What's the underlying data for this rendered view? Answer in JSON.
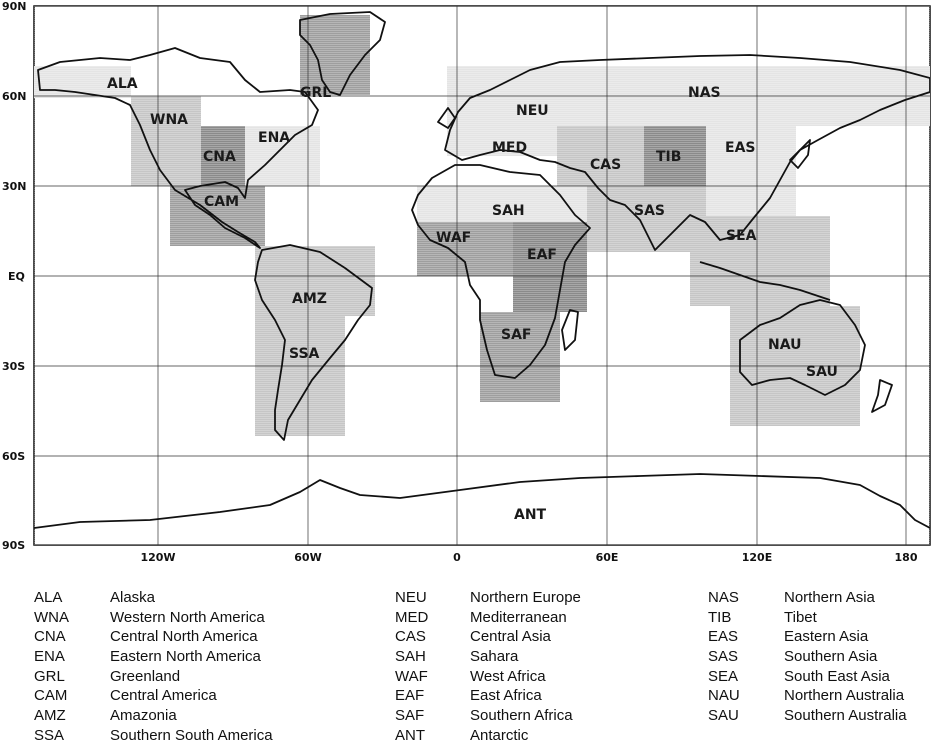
{
  "map": {
    "lat_labels": [
      "90N",
      "60N",
      "30N",
      "EQ",
      "30S",
      "60S",
      "90S"
    ],
    "lon_labels": [
      "120W",
      "60W",
      "0",
      "60E",
      "120E",
      "180"
    ],
    "colors": {
      "light": "#e4e4e4",
      "medium": "#c6c6c6",
      "dark": "#9e9e9e",
      "darker": "#8a8a8a",
      "outline": "#111111"
    },
    "regions": [
      {
        "code": "ALA",
        "shade": "light"
      },
      {
        "code": "WNA",
        "shade": "medium"
      },
      {
        "code": "CNA",
        "shade": "darker"
      },
      {
        "code": "ENA",
        "shade": "light"
      },
      {
        "code": "GRL",
        "shade": "dark"
      },
      {
        "code": "CAM",
        "shade": "dark"
      },
      {
        "code": "AMZ",
        "shade": "medium"
      },
      {
        "code": "SSA",
        "shade": "medium"
      },
      {
        "code": "NEU",
        "shade": "light"
      },
      {
        "code": "MED",
        "shade": "light"
      },
      {
        "code": "CAS",
        "shade": "medium"
      },
      {
        "code": "SAH",
        "shade": "light"
      },
      {
        "code": "WAF",
        "shade": "dark"
      },
      {
        "code": "EAF",
        "shade": "darker"
      },
      {
        "code": "SAF",
        "shade": "dark"
      },
      {
        "code": "ANT",
        "shade": "none"
      },
      {
        "code": "NAS",
        "shade": "light"
      },
      {
        "code": "TIB",
        "shade": "darker"
      },
      {
        "code": "EAS",
        "shade": "light"
      },
      {
        "code": "SAS",
        "shade": "medium"
      },
      {
        "code": "SEA",
        "shade": "medium"
      },
      {
        "code": "NAU",
        "shade": "medium"
      },
      {
        "code": "SAU",
        "shade": "medium"
      }
    ]
  },
  "legend": {
    "columns": [
      [
        {
          "code": "ALA",
          "name": "Alaska"
        },
        {
          "code": "WNA",
          "name": "Western North America"
        },
        {
          "code": "CNA",
          "name": "Central North America"
        },
        {
          "code": "ENA",
          "name": "Eastern North America"
        },
        {
          "code": "GRL",
          "name": "Greenland"
        },
        {
          "code": "CAM",
          "name": "Central America"
        },
        {
          "code": "AMZ",
          "name": "Amazonia"
        },
        {
          "code": "SSA",
          "name": "Southern South America"
        }
      ],
      [
        {
          "code": "NEU",
          "name": "Northern Europe"
        },
        {
          "code": "MED",
          "name": "Mediterranean"
        },
        {
          "code": "CAS",
          "name": "Central Asia"
        },
        {
          "code": "SAH",
          "name": "Sahara"
        },
        {
          "code": "WAF",
          "name": "West Africa"
        },
        {
          "code": "EAF",
          "name": "East Africa"
        },
        {
          "code": "SAF",
          "name": "Southern Africa"
        },
        {
          "code": "ANT",
          "name": "Antarctic"
        }
      ],
      [
        {
          "code": "NAS",
          "name": "Northern Asia"
        },
        {
          "code": "TIB",
          "name": "Tibet"
        },
        {
          "code": "EAS",
          "name": "Eastern Asia"
        },
        {
          "code": "SAS",
          "name": "Southern Asia"
        },
        {
          "code": "SEA",
          "name": "South East Asia"
        },
        {
          "code": "NAU",
          "name": "Northern Australia"
        },
        {
          "code": "SAU",
          "name": "Southern Australia"
        }
      ]
    ]
  }
}
